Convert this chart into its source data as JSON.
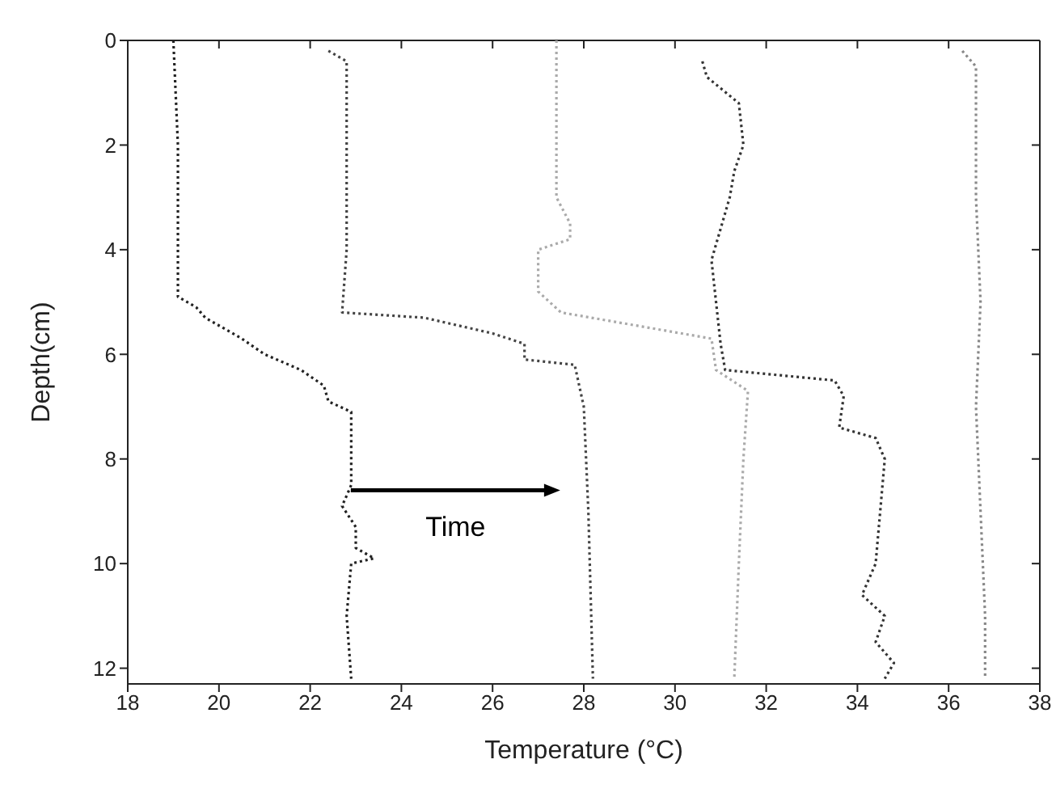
{
  "chart_data": {
    "type": "line",
    "xlabel": "Temperature (°C)",
    "ylabel": "Depth(cm)",
    "xlim": [
      18,
      38
    ],
    "xticks": [
      18,
      20,
      22,
      24,
      26,
      28,
      30,
      32,
      34,
      36,
      38
    ],
    "ylim": [
      12.3,
      0
    ],
    "yticks": [
      0,
      2,
      4,
      6,
      8,
      10,
      12
    ],
    "legend": false,
    "marker": "none",
    "line_style": "dotted",
    "annotations": [
      "Time"
    ],
    "series": [
      {
        "color": "#222222",
        "x": [
          19.0,
          19.1,
          19.1,
          19.1,
          19.5,
          19.7,
          20.5,
          21.0,
          21.8,
          22.3,
          22.4,
          22.9,
          22.9,
          22.7,
          23.0,
          23.0,
          23.4,
          22.9,
          22.8,
          22.9
        ],
        "values": [
          0,
          2,
          4,
          4.9,
          5.1,
          5.3,
          5.7,
          6.0,
          6.3,
          6.6,
          6.9,
          7.1,
          8.5,
          8.9,
          9.3,
          9.7,
          9.9,
          10.0,
          11,
          12.2
        ]
      },
      {
        "color": "#444444",
        "x": [
          22.4,
          22.8,
          22.8,
          22.8,
          22.7,
          24.5,
          26.0,
          26.7,
          26.7,
          27.8,
          28.0,
          28.1,
          28.2
        ],
        "values": [
          0.2,
          0.4,
          2,
          4,
          5.2,
          5.3,
          5.6,
          5.8,
          6.1,
          6.2,
          7,
          9,
          12.2
        ]
      },
      {
        "color": "#aaaaaa",
        "x": [
          27.4,
          27.4,
          27.4,
          27.7,
          27.7,
          27.0,
          27.0,
          27.5,
          30.8,
          30.9,
          31.6,
          31.5,
          31.4,
          31.3
        ],
        "values": [
          0,
          1,
          3,
          3.5,
          3.8,
          4.0,
          4.8,
          5.2,
          5.7,
          6.3,
          6.7,
          8,
          10,
          12.2
        ]
      },
      {
        "color": "#333333",
        "x": [
          30.6,
          30.7,
          31.4,
          31.5,
          31.3,
          31.2,
          30.8,
          30.9,
          31.0,
          31.1,
          33.5,
          33.7,
          33.6,
          34.4,
          34.6,
          34.5,
          34.4,
          34.1,
          34.6,
          34.4,
          34.8,
          34.6
        ],
        "values": [
          0.4,
          0.7,
          1.2,
          2.0,
          2.5,
          3.0,
          4.2,
          5.0,
          5.8,
          6.3,
          6.5,
          6.8,
          7.4,
          7.6,
          8.0,
          9.0,
          10.0,
          10.6,
          11.0,
          11.5,
          11.9,
          12.2
        ]
      },
      {
        "color": "#888888",
        "x": [
          36.3,
          36.6,
          36.6,
          36.6,
          36.7,
          36.6,
          36.7,
          36.8,
          36.8
        ],
        "values": [
          0.2,
          0.5,
          1.5,
          3,
          5,
          7,
          9,
          11,
          12.2
        ]
      }
    ]
  }
}
